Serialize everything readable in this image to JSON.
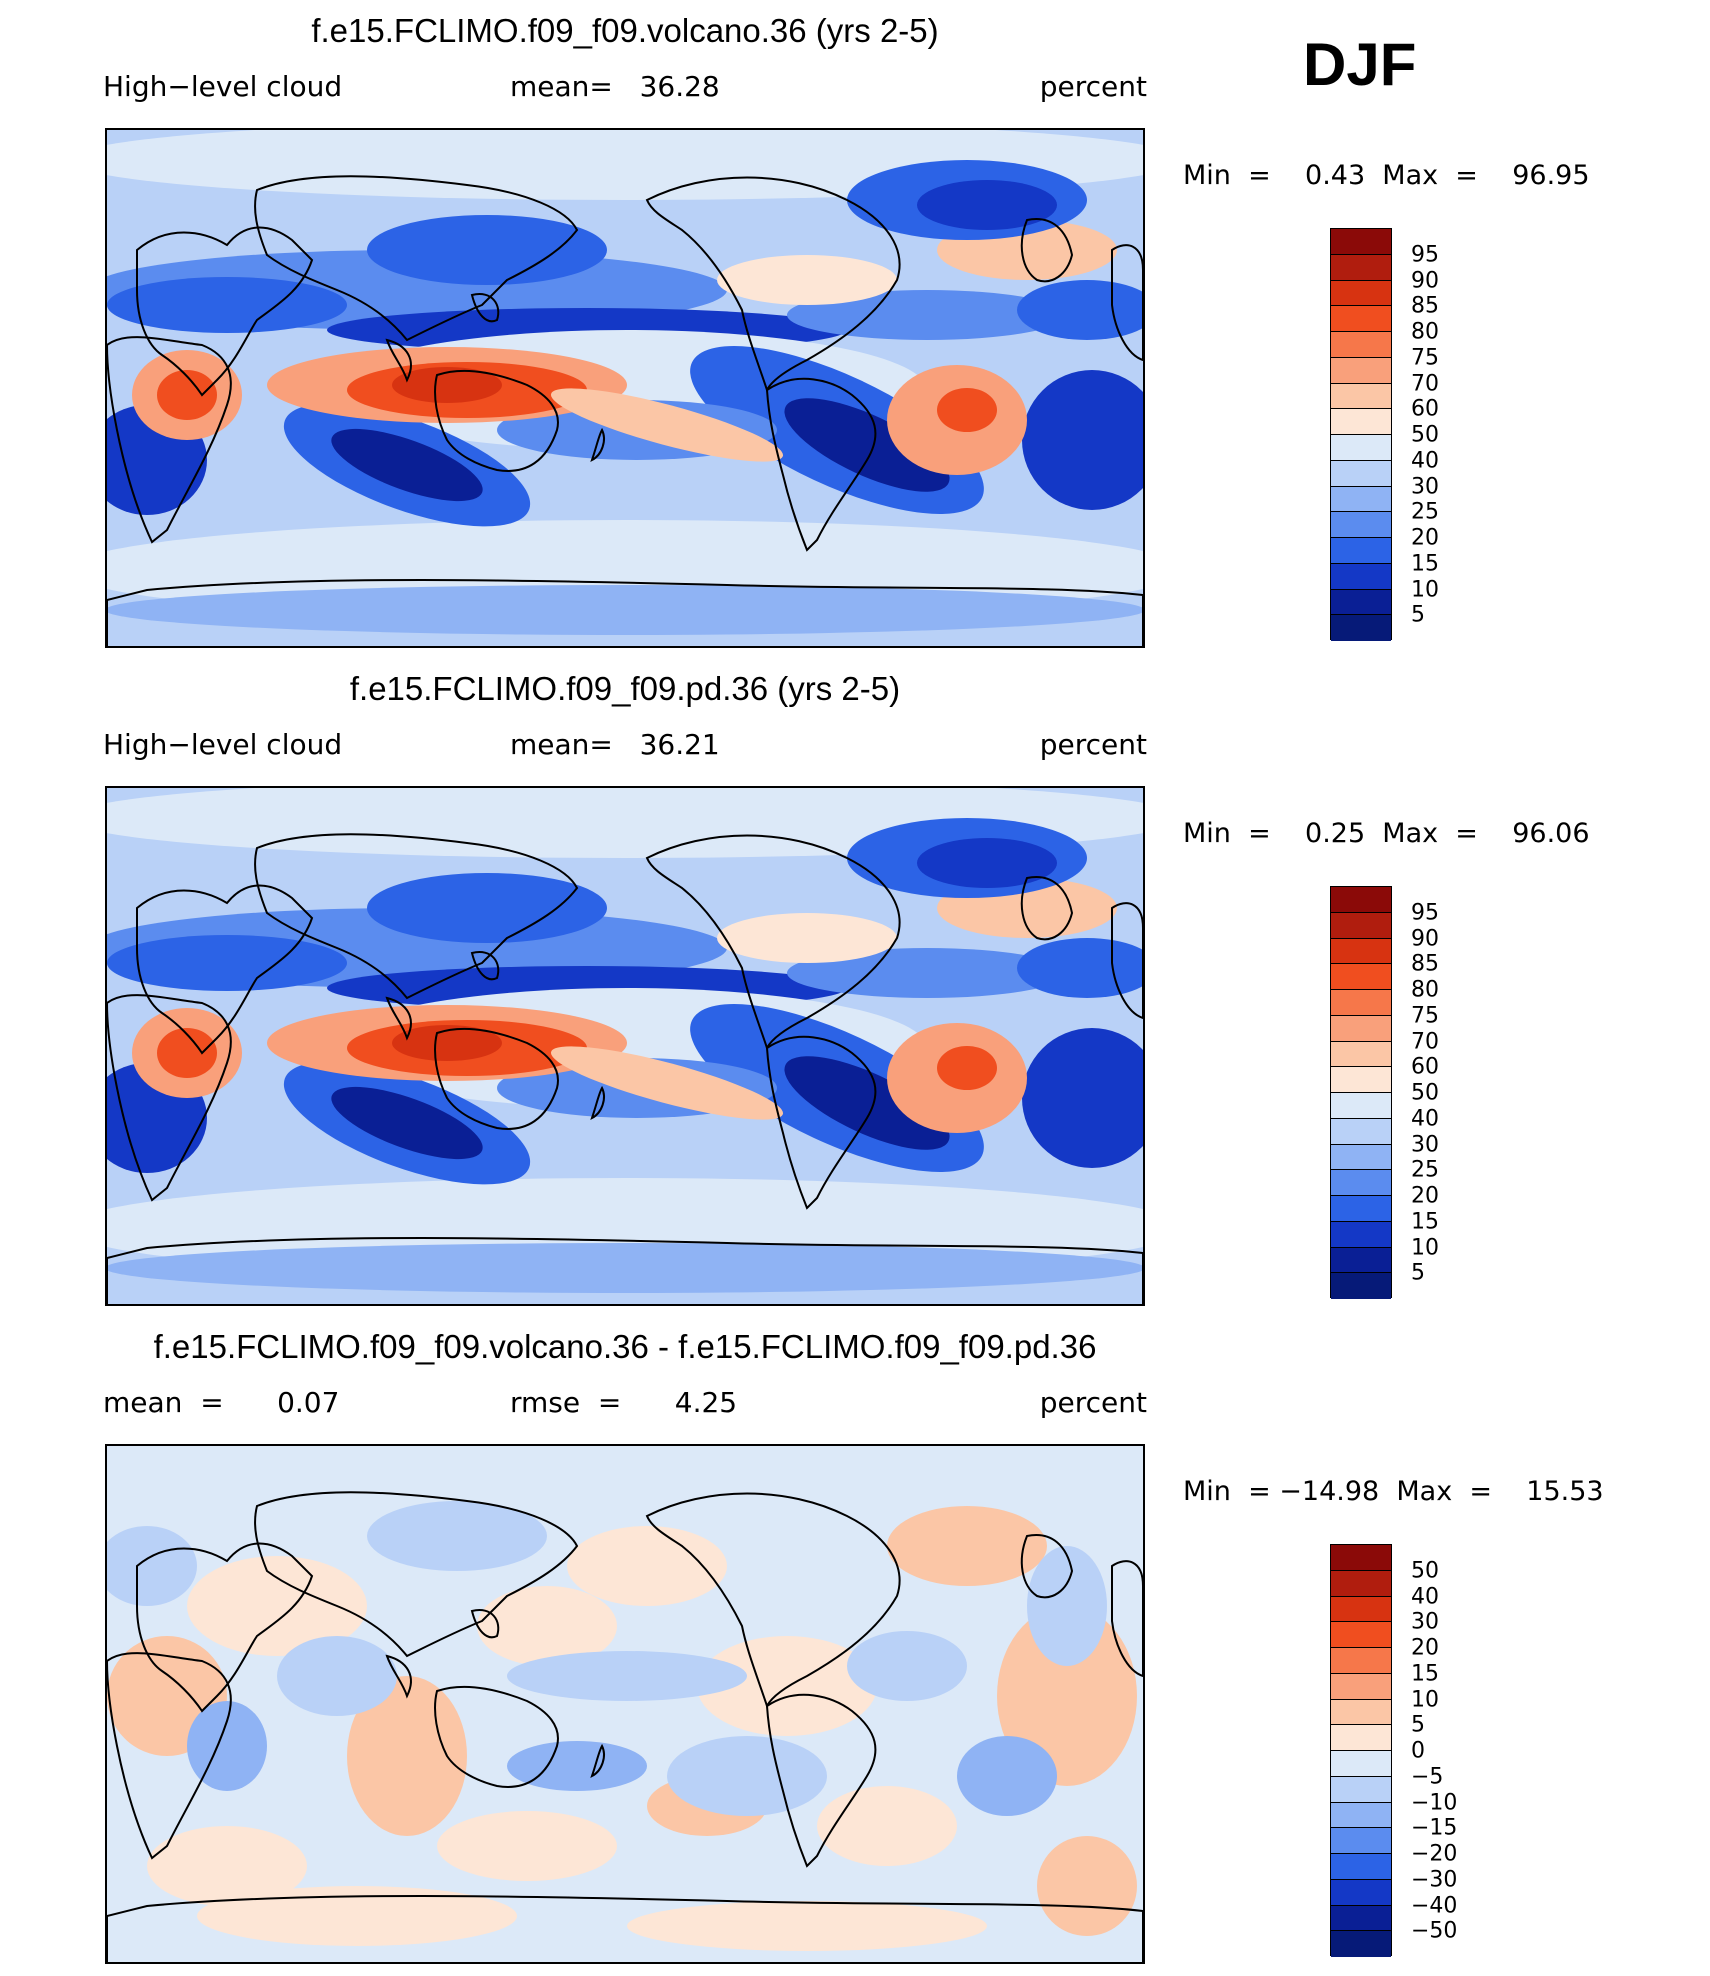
{
  "season": "DJF",
  "panels": [
    {
      "title": "f.e15.FCLIMO.f09_f09.volcano.36 (yrs 2-5)",
      "left_label": "High−level cloud",
      "mid_label": "mean=   36.28",
      "right_label": "percent",
      "minmax": "Min  =    0.43  Max  =    96.95",
      "map_kind": "abs",
      "colorbar": {
        "labels": [
          "95",
          "90",
          "85",
          "80",
          "75",
          "70",
          "60",
          "50",
          "40",
          "30",
          "25",
          "20",
          "15",
          "10",
          "5"
        ],
        "colors": [
          "#8b0a08",
          "#b01d0e",
          "#d73311",
          "#f04e1f",
          "#f6774a",
          "#f9a07b",
          "#fbc6a6",
          "#fde6d6",
          "#dce9f8",
          "#b9d1f7",
          "#8fb3f4",
          "#5b8cef",
          "#2c63e6",
          "#1438c6",
          "#0a1f95",
          "#061a78"
        ]
      }
    },
    {
      "title": "f.e15.FCLIMO.f09_f09.pd.36 (yrs 2-5)",
      "left_label": "High−level cloud",
      "mid_label": "mean=   36.21",
      "right_label": "percent",
      "minmax": "Min  =    0.25  Max  =    96.06",
      "map_kind": "abs",
      "colorbar": {
        "labels": [
          "95",
          "90",
          "85",
          "80",
          "75",
          "70",
          "60",
          "50",
          "40",
          "30",
          "25",
          "20",
          "15",
          "10",
          "5"
        ],
        "colors": [
          "#8b0a08",
          "#b01d0e",
          "#d73311",
          "#f04e1f",
          "#f6774a",
          "#f9a07b",
          "#fbc6a6",
          "#fde6d6",
          "#dce9f8",
          "#b9d1f7",
          "#8fb3f4",
          "#5b8cef",
          "#2c63e6",
          "#1438c6",
          "#0a1f95",
          "#061a78"
        ]
      }
    },
    {
      "title": "f.e15.FCLIMO.f09_f09.volcano.36 - f.e15.FCLIMO.f09_f09.pd.36",
      "left_label": "mean  =      0.07",
      "mid_label": "rmse  =      4.25",
      "right_label": "percent",
      "minmax": "Min  = −14.98  Max  =    15.53",
      "map_kind": "diff",
      "colorbar": {
        "labels": [
          "50",
          "40",
          "30",
          "20",
          "15",
          "10",
          "5",
          "0",
          "−5",
          "−10",
          "−15",
          "−20",
          "−30",
          "−40",
          "−50"
        ],
        "colors": [
          "#8b0a08",
          "#b01d0e",
          "#d73311",
          "#f04e1f",
          "#f6774a",
          "#f9a07b",
          "#fbc6a6",
          "#fde6d6",
          "#dce9f8",
          "#b9d1f7",
          "#8fb3f4",
          "#5b8cef",
          "#2c63e6",
          "#1438c6",
          "#0a1f95",
          "#061a78"
        ]
      }
    }
  ]
}
